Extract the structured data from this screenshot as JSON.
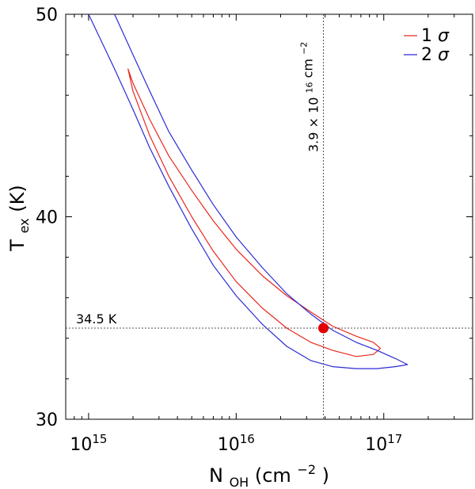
{
  "chart_data": {
    "type": "line",
    "xlabel": "N",
    "xlabel_sub": "OH",
    "xlabel_unit": " (cm",
    "xlabel_unit_sup": "−2",
    "xlabel_unit_end": ")",
    "ylabel": "T",
    "ylabel_sub": "ex",
    "ylabel_unit": " (K)",
    "x_scale": "log",
    "xlim": [
      700000000000000.0,
      4e+17
    ],
    "ylim": [
      30,
      50
    ],
    "x_ticks": [
      {
        "value": 1000000000000000.0,
        "base": "10",
        "exp": "15"
      },
      {
        "value": 1e+16,
        "base": "10",
        "exp": "16"
      },
      {
        "value": 1e+17,
        "base": "10",
        "exp": "17"
      }
    ],
    "y_ticks": [
      {
        "value": 30,
        "label": "30"
      },
      {
        "value": 40,
        "label": "40"
      },
      {
        "value": 50,
        "label": "50"
      }
    ],
    "legend_position": "top-right",
    "series": [
      {
        "name": "1 σ",
        "legend_num": "1",
        "legend_sym": "σ",
        "color": "#e8281e",
        "upper": [
          [
            1850000000000000.0,
            47.3
          ],
          [
            2000000000000000.0,
            46.6
          ],
          [
            2600000000000000.0,
            44.8
          ],
          [
            3500000000000000.0,
            43.0
          ],
          [
            5000000000000000.0,
            41.3
          ],
          [
            7000000000000000.0,
            39.8
          ],
          [
            1e+16,
            38.4
          ],
          [
            1.5e+16,
            37.1
          ],
          [
            2.2e+16,
            36.1
          ],
          [
            3.2e+16,
            35.3
          ],
          [
            4.5e+16,
            34.6
          ],
          [
            6.5e+16,
            34.1
          ],
          [
            8.5e+16,
            33.8
          ],
          [
            9.5e+16,
            33.5
          ]
        ],
        "lower": [
          [
            2000000000000000.0,
            46.2
          ],
          [
            2600000000000000.0,
            44.0
          ],
          [
            3500000000000000.0,
            42.0
          ],
          [
            5000000000000000.0,
            40.0
          ],
          [
            7000000000000000.0,
            38.3
          ],
          [
            1e+16,
            36.8
          ],
          [
            1.5e+16,
            35.5
          ],
          [
            2.2e+16,
            34.5
          ],
          [
            3.2e+16,
            33.8
          ],
          [
            4.5e+16,
            33.4
          ],
          [
            6.5e+16,
            33.1
          ],
          [
            8.5e+16,
            33.2
          ],
          [
            9.5e+16,
            33.5
          ]
        ]
      },
      {
        "name": "2 σ",
        "legend_num": "2",
        "legend_sym": "σ",
        "color": "#2b2bd6",
        "upper": [
          [
            1500000000000000.0,
            50.0
          ],
          [
            2000000000000000.0,
            48.0
          ],
          [
            2600000000000000.0,
            46.2
          ],
          [
            3500000000000000.0,
            44.2
          ],
          [
            5000000000000000.0,
            42.3
          ],
          [
            7000000000000000.0,
            40.6
          ],
          [
            1e+16,
            39.0
          ],
          [
            1.5e+16,
            37.5
          ],
          [
            2.2e+16,
            36.2
          ],
          [
            3.2e+16,
            35.2
          ],
          [
            4.5e+16,
            34.4
          ],
          [
            6.5e+16,
            33.8
          ],
          [
            9e+16,
            33.4
          ],
          [
            1.2e+17,
            33.0
          ],
          [
            1.45e+17,
            32.7
          ]
        ],
        "lower": [
          [
            1000000000000000.0,
            50.0
          ],
          [
            1500000000000000.0,
            47.3
          ],
          [
            2000000000000000.0,
            45.3
          ],
          [
            2600000000000000.0,
            43.4
          ],
          [
            3500000000000000.0,
            41.5
          ],
          [
            5000000000000000.0,
            39.4
          ],
          [
            7000000000000000.0,
            37.6
          ],
          [
            1e+16,
            36.1
          ],
          [
            1.5e+16,
            34.7
          ],
          [
            2.2e+16,
            33.6
          ],
          [
            3.2e+16,
            32.9
          ],
          [
            4.5e+16,
            32.6
          ],
          [
            6.5e+16,
            32.5
          ],
          [
            9e+16,
            32.5
          ],
          [
            1.2e+17,
            32.6
          ],
          [
            1.45e+17,
            32.7
          ]
        ]
      }
    ],
    "best_fit": {
      "x": 3.9e+16,
      "y": 34.5,
      "color": "#e00000"
    },
    "reference_lines": {
      "vertical": {
        "x": 3.9e+16,
        "mantissa": "3.9",
        "times": "×",
        "base": "10",
        "exp": "16",
        "unit": "cm",
        "unit_exp": "−2"
      },
      "horizontal": {
        "y": 34.5,
        "label": "34.5 K"
      }
    }
  }
}
